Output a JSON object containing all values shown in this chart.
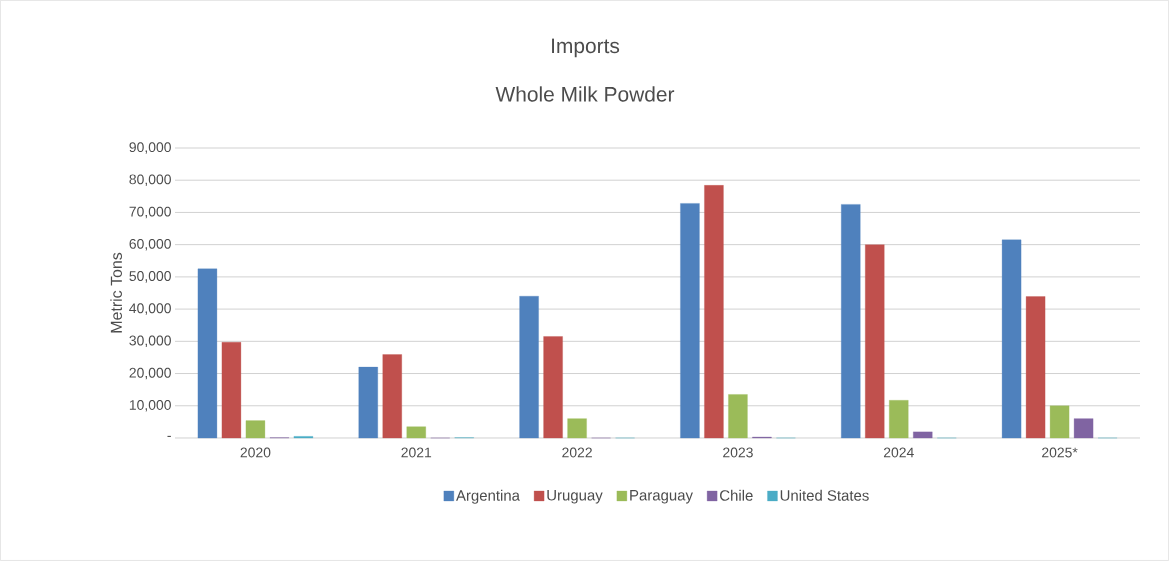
{
  "chart_data": {
    "type": "bar",
    "title": "Imports",
    "subtitle": "Whole Milk Powder",
    "ylabel": "Metric Tons",
    "categories": [
      "2020",
      "2021",
      "2022",
      "2023",
      "2024",
      "2025*"
    ],
    "series": [
      {
        "name": "Argentina",
        "color": "#4f81bd",
        "values": [
          52500,
          22000,
          44000,
          72800,
          72500,
          61500
        ]
      },
      {
        "name": "Uruguay",
        "color": "#c0504d",
        "values": [
          29700,
          25900,
          31500,
          78400,
          60000,
          43900
        ]
      },
      {
        "name": "Paraguay",
        "color": "#9bbb59",
        "values": [
          5400,
          3500,
          6000,
          13500,
          11700,
          10000
        ]
      },
      {
        "name": "Chile",
        "color": "#8064a2",
        "values": [
          100,
          0,
          0,
          300,
          1900,
          6000
        ]
      },
      {
        "name": "United States",
        "color": "#4bacc6",
        "values": [
          500,
          100,
          0,
          0,
          0,
          0
        ]
      }
    ],
    "ylim": [
      0,
      90000
    ],
    "yticks": [
      {
        "value": 0,
        "label": "-"
      },
      {
        "value": 10000,
        "label": "10,000"
      },
      {
        "value": 20000,
        "label": "20,000"
      },
      {
        "value": 30000,
        "label": "30,000"
      },
      {
        "value": 40000,
        "label": "40,000"
      },
      {
        "value": 50000,
        "label": "50,000"
      },
      {
        "value": 60000,
        "label": "60,000"
      },
      {
        "value": 70000,
        "label": "70,000"
      },
      {
        "value": 80000,
        "label": "80,000"
      },
      {
        "value": 90000,
        "label": "90,000"
      }
    ],
    "grid": "y",
    "legend": "bottom"
  }
}
